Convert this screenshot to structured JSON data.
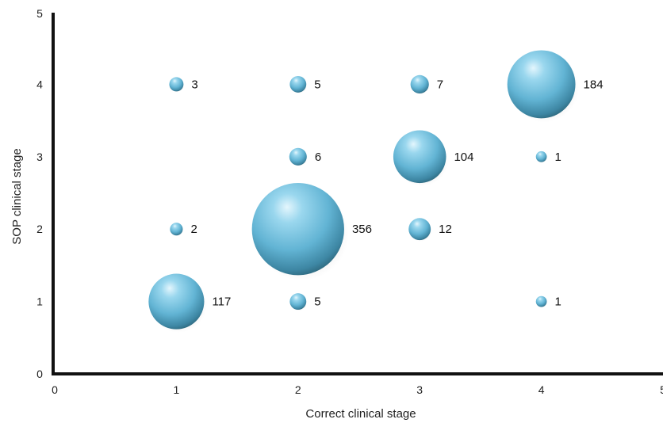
{
  "chart_data": {
    "type": "scatter",
    "subtype": "bubble",
    "xlabel": "Correct clinical stage",
    "ylabel": "SOP clinical stage",
    "xlim": [
      0,
      5
    ],
    "ylim": [
      0,
      5
    ],
    "xticks": [
      "0",
      "1",
      "2",
      "3",
      "4",
      "5"
    ],
    "yticks": [
      "0",
      "1",
      "2",
      "3",
      "4",
      "5"
    ],
    "grid": false,
    "bubble_color": "#6fbfdc",
    "points": [
      {
        "x": 1,
        "y": 4,
        "value": 3,
        "label": "3"
      },
      {
        "x": 2,
        "y": 4,
        "value": 5,
        "label": "5"
      },
      {
        "x": 3,
        "y": 4,
        "value": 7,
        "label": "7"
      },
      {
        "x": 4,
        "y": 4,
        "value": 184,
        "label": "184"
      },
      {
        "x": 2,
        "y": 3,
        "value": 6,
        "label": "6"
      },
      {
        "x": 3,
        "y": 3,
        "value": 104,
        "label": "104"
      },
      {
        "x": 4,
        "y": 3,
        "value": 1,
        "label": "1"
      },
      {
        "x": 1,
        "y": 2,
        "value": 2,
        "label": "2"
      },
      {
        "x": 2,
        "y": 2,
        "value": 356,
        "label": "356"
      },
      {
        "x": 3,
        "y": 2,
        "value": 12,
        "label": "12"
      },
      {
        "x": 1,
        "y": 1,
        "value": 117,
        "label": "117"
      },
      {
        "x": 2,
        "y": 1,
        "value": 5,
        "label": "5"
      },
      {
        "x": 4,
        "y": 1,
        "value": 1,
        "label": "1"
      }
    ]
  }
}
